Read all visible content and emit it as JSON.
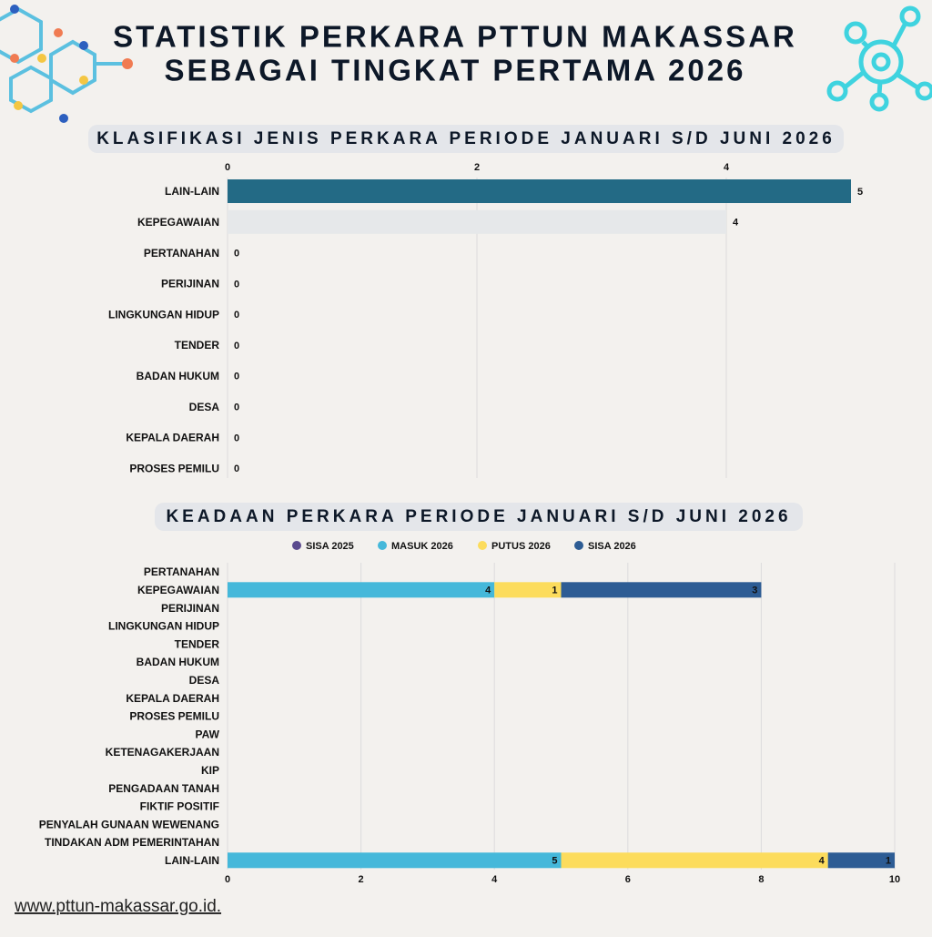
{
  "header": {
    "title_lines": [
      "STATISTIK PERKARA PTTUN MAKASSAR",
      "SEBAGAI TINGKAT PERTAMA 2026"
    ]
  },
  "chart_data": [
    {
      "type": "bar",
      "orientation": "horizontal",
      "title": "KLASIFIKASI JENIS PERKARA PERIODE JANUARI S/D JUNI 2026",
      "categories": [
        "LAIN-LAIN",
        "KEPEGAWAIAN",
        "PERTANAHAN",
        "PERIJINAN",
        "LINGKUNGAN HIDUP",
        "TENDER",
        "BADAN HUKUM",
        "DESA",
        "KEPALA DAERAH",
        "PROSES PEMILU"
      ],
      "values": [
        5,
        4,
        0,
        0,
        0,
        0,
        0,
        0,
        0,
        0
      ],
      "colors": [
        "#236a85",
        "#e6e8ea",
        "#e6e8ea",
        "#e6e8ea",
        "#e6e8ea",
        "#e6e8ea",
        "#e6e8ea",
        "#e6e8ea",
        "#e6e8ea",
        "#e6e8ea"
      ],
      "xlim": [
        0,
        5
      ],
      "xticks": [
        0,
        2,
        4
      ],
      "grid": true
    },
    {
      "type": "stacked_bar",
      "orientation": "horizontal",
      "title": "KEADAAN PERKARA PERIODE JANUARI S/D JUNI 2026",
      "categories": [
        "PERTANAHAN",
        "KEPEGAWAIAN",
        "PERIJINAN",
        "LINGKUNGAN HIDUP",
        "TENDER",
        "BADAN HUKUM",
        "DESA",
        "KEPALA DAERAH",
        "PROSES PEMILU",
        "PAW",
        "KETENAGAKERJAAN",
        "KIP",
        "PENGADAAN TANAH",
        "FIKTIF POSITIF",
        "PENYALAH GUNAAN WEWENANG",
        "TINDAKAN ADM PEMERINTAHAN",
        "LAIN-LAIN"
      ],
      "series": [
        {
          "name": "SISA 2025",
          "color": "#5a4a8e",
          "values": [
            0,
            0,
            0,
            0,
            0,
            0,
            0,
            0,
            0,
            0,
            0,
            0,
            0,
            0,
            0,
            0,
            0
          ]
        },
        {
          "name": "MASUK 2026",
          "color": "#45b8da",
          "values": [
            0,
            4,
            0,
            0,
            0,
            0,
            0,
            0,
            0,
            0,
            0,
            0,
            0,
            0,
            0,
            0,
            5
          ]
        },
        {
          "name": "PUTUS 2026",
          "color": "#fcdc5c",
          "values": [
            0,
            1,
            0,
            0,
            0,
            0,
            0,
            0,
            0,
            0,
            0,
            0,
            0,
            0,
            0,
            0,
            4
          ]
        },
        {
          "name": "SISA 2026",
          "color": "#2d5c94",
          "values": [
            0,
            3,
            0,
            0,
            0,
            0,
            0,
            0,
            0,
            0,
            0,
            0,
            0,
            0,
            0,
            0,
            1
          ]
        }
      ],
      "xlim": [
        0,
        10
      ],
      "xticks": [
        0,
        2,
        4,
        6,
        8,
        10
      ],
      "grid": true,
      "legend": "top"
    }
  ],
  "footer": {
    "url": "www.pttun-makassar.go.id."
  }
}
